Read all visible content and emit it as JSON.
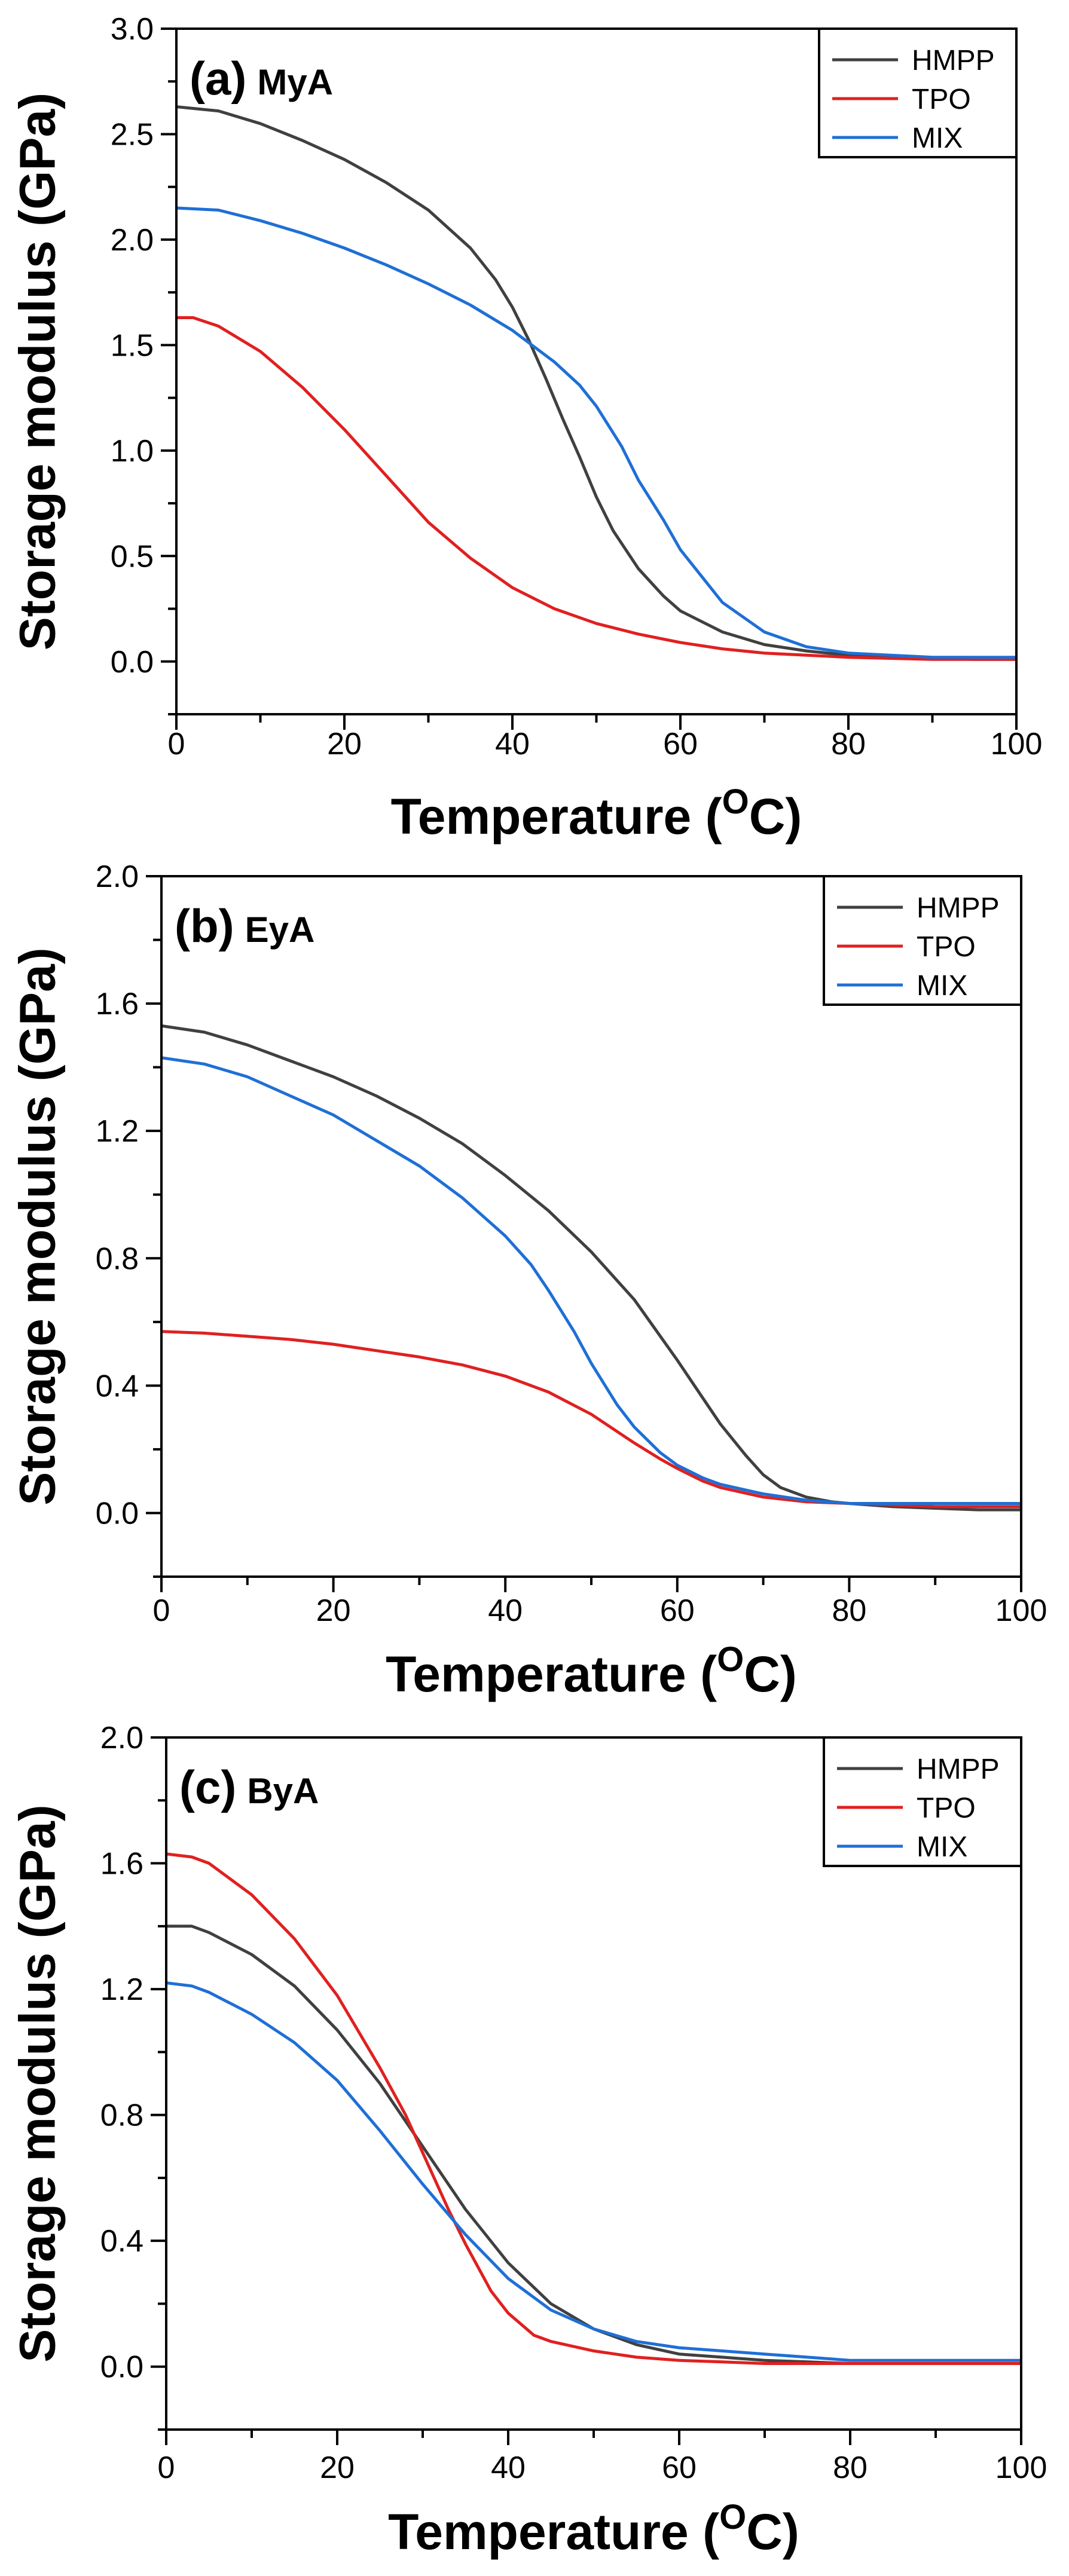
{
  "chart_data": [
    {
      "type": "line",
      "panel_label": "(a)",
      "title": "MyA",
      "xlabel": "Temperature (",
      "xlabel_superscript": "O",
      "xlabel_unit": "C)",
      "ylabel": "Storage modulus (GPa)",
      "xlim": [
        0,
        100
      ],
      "ylim": [
        -0.25,
        3.0
      ],
      "xticks": [
        0,
        20,
        40,
        60,
        80,
        100
      ],
      "yticks": [
        0.0,
        0.5,
        1.0,
        1.5,
        2.0,
        2.5,
        3.0
      ],
      "ytick_labels": [
        "0.0",
        "0.5",
        "1.0",
        "1.5",
        "2.0",
        "2.5",
        "3.0"
      ],
      "legend": "top-right",
      "series": [
        {
          "name": "HMPP",
          "color": "#404040",
          "x": [
            0,
            5,
            10,
            15,
            20,
            25,
            30,
            35,
            38,
            40,
            42,
            44,
            46,
            48,
            50,
            52,
            55,
            58,
            60,
            65,
            70,
            75,
            80,
            85,
            90,
            95,
            100
          ],
          "y": [
            2.63,
            2.61,
            2.55,
            2.47,
            2.38,
            2.27,
            2.14,
            1.96,
            1.81,
            1.68,
            1.52,
            1.34,
            1.15,
            0.97,
            0.78,
            0.62,
            0.44,
            0.31,
            0.24,
            0.14,
            0.08,
            0.05,
            0.03,
            0.02,
            0.015,
            0.01,
            0.01
          ]
        },
        {
          "name": "TPO",
          "color": "#e02020",
          "x": [
            0,
            2,
            5,
            10,
            15,
            20,
            25,
            30,
            35,
            40,
            45,
            50,
            55,
            60,
            65,
            70,
            75,
            80,
            85,
            90,
            95,
            100
          ],
          "y": [
            1.63,
            1.63,
            1.59,
            1.47,
            1.3,
            1.1,
            0.88,
            0.66,
            0.49,
            0.35,
            0.25,
            0.18,
            0.13,
            0.09,
            0.06,
            0.04,
            0.03,
            0.02,
            0.015,
            0.01,
            0.01,
            0.01
          ]
        },
        {
          "name": "MIX",
          "color": "#1f6fd6",
          "x": [
            0,
            5,
            10,
            15,
            20,
            25,
            30,
            35,
            40,
            42,
            45,
            48,
            50,
            53,
            55,
            58,
            60,
            63,
            65,
            70,
            75,
            80,
            85,
            90,
            95,
            100
          ],
          "y": [
            2.15,
            2.14,
            2.09,
            2.03,
            1.96,
            1.88,
            1.79,
            1.69,
            1.57,
            1.51,
            1.42,
            1.31,
            1.21,
            1.02,
            0.86,
            0.67,
            0.53,
            0.38,
            0.28,
            0.14,
            0.07,
            0.04,
            0.03,
            0.02,
            0.02,
            0.02
          ]
        }
      ]
    },
    {
      "type": "line",
      "panel_label": "(b)",
      "title": "EyA",
      "xlabel": "Temperature (",
      "xlabel_superscript": "O",
      "xlabel_unit": "C)",
      "ylabel": "Storage modulus (GPa)",
      "xlim": [
        0,
        100
      ],
      "ylim": [
        -0.2,
        2.0
      ],
      "xticks": [
        0,
        20,
        40,
        60,
        80,
        100
      ],
      "yticks": [
        0.0,
        0.4,
        0.8,
        1.2,
        1.6,
        2.0
      ],
      "ytick_labels": [
        "0.0",
        "0.4",
        "0.8",
        "1.2",
        "1.6",
        "2.0"
      ],
      "legend": "top-right",
      "series": [
        {
          "name": "HMPP",
          "color": "#404040",
          "x": [
            0,
            5,
            10,
            15,
            20,
            25,
            30,
            35,
            40,
            45,
            50,
            55,
            60,
            63,
            65,
            68,
            70,
            72,
            75,
            78,
            80,
            85,
            90,
            95,
            100
          ],
          "y": [
            1.53,
            1.51,
            1.47,
            1.42,
            1.37,
            1.31,
            1.24,
            1.16,
            1.06,
            0.95,
            0.82,
            0.67,
            0.48,
            0.36,
            0.28,
            0.18,
            0.12,
            0.08,
            0.05,
            0.035,
            0.03,
            0.02,
            0.015,
            0.01,
            0.01
          ]
        },
        {
          "name": "TPO",
          "color": "#e02020",
          "x": [
            0,
            5,
            10,
            15,
            20,
            25,
            30,
            35,
            40,
            45,
            50,
            55,
            58,
            60,
            63,
            65,
            70,
            75,
            80,
            85,
            90,
            95,
            100
          ],
          "y": [
            0.57,
            0.565,
            0.555,
            0.545,
            0.53,
            0.51,
            0.49,
            0.465,
            0.43,
            0.38,
            0.31,
            0.22,
            0.17,
            0.14,
            0.1,
            0.08,
            0.05,
            0.035,
            0.03,
            0.025,
            0.02,
            0.02,
            0.02
          ]
        },
        {
          "name": "MIX",
          "color": "#1f6fd6",
          "x": [
            0,
            5,
            10,
            15,
            20,
            25,
            30,
            35,
            40,
            43,
            45,
            48,
            50,
            53,
            55,
            58,
            60,
            63,
            65,
            70,
            75,
            80,
            85,
            90,
            95,
            100
          ],
          "y": [
            1.43,
            1.41,
            1.37,
            1.31,
            1.25,
            1.17,
            1.09,
            0.99,
            0.87,
            0.78,
            0.7,
            0.57,
            0.47,
            0.34,
            0.27,
            0.19,
            0.15,
            0.11,
            0.09,
            0.06,
            0.04,
            0.03,
            0.03,
            0.03,
            0.03,
            0.03
          ]
        }
      ]
    },
    {
      "type": "line",
      "panel_label": "(c)",
      "title": "ByA",
      "xlabel": "Temperature (",
      "xlabel_superscript": "O",
      "xlabel_unit": "C)",
      "ylabel": "Storage modulus (GPa)",
      "xlim": [
        0,
        100
      ],
      "ylim": [
        -0.2,
        2.0
      ],
      "xticks": [
        0,
        20,
        40,
        60,
        80,
        100
      ],
      "yticks": [
        0.0,
        0.4,
        0.8,
        1.2,
        1.6,
        2.0
      ],
      "ytick_labels": [
        "0.0",
        "0.4",
        "0.8",
        "1.2",
        "1.6",
        "2.0"
      ],
      "legend": "top-right",
      "series": [
        {
          "name": "HMPP",
          "color": "#404040",
          "x": [
            0,
            3,
            5,
            10,
            15,
            20,
            25,
            30,
            35,
            40,
            45,
            50,
            55,
            60,
            65,
            70,
            75,
            80,
            85,
            90,
            95,
            100
          ],
          "y": [
            1.4,
            1.4,
            1.38,
            1.31,
            1.21,
            1.07,
            0.9,
            0.7,
            0.5,
            0.33,
            0.2,
            0.12,
            0.07,
            0.04,
            0.03,
            0.02,
            0.015,
            0.01,
            0.01,
            0.01,
            0.01,
            0.01
          ]
        },
        {
          "name": "TPO",
          "color": "#e02020",
          "x": [
            0,
            3,
            5,
            10,
            15,
            20,
            25,
            28,
            30,
            33,
            35,
            38,
            40,
            43,
            45,
            50,
            55,
            60,
            65,
            70,
            80,
            90,
            100
          ],
          "y": [
            1.63,
            1.62,
            1.6,
            1.5,
            1.36,
            1.18,
            0.95,
            0.8,
            0.68,
            0.5,
            0.39,
            0.24,
            0.17,
            0.1,
            0.08,
            0.05,
            0.03,
            0.02,
            0.015,
            0.01,
            0.01,
            0.01,
            0.01
          ]
        },
        {
          "name": "MIX",
          "color": "#1f6fd6",
          "x": [
            0,
            3,
            5,
            10,
            15,
            20,
            25,
            30,
            35,
            40,
            45,
            50,
            55,
            60,
            65,
            70,
            75,
            80,
            85,
            90,
            95,
            100
          ],
          "y": [
            1.22,
            1.21,
            1.19,
            1.12,
            1.03,
            0.91,
            0.75,
            0.58,
            0.42,
            0.28,
            0.18,
            0.12,
            0.08,
            0.06,
            0.05,
            0.04,
            0.03,
            0.02,
            0.02,
            0.02,
            0.02,
            0.02
          ]
        }
      ]
    }
  ]
}
